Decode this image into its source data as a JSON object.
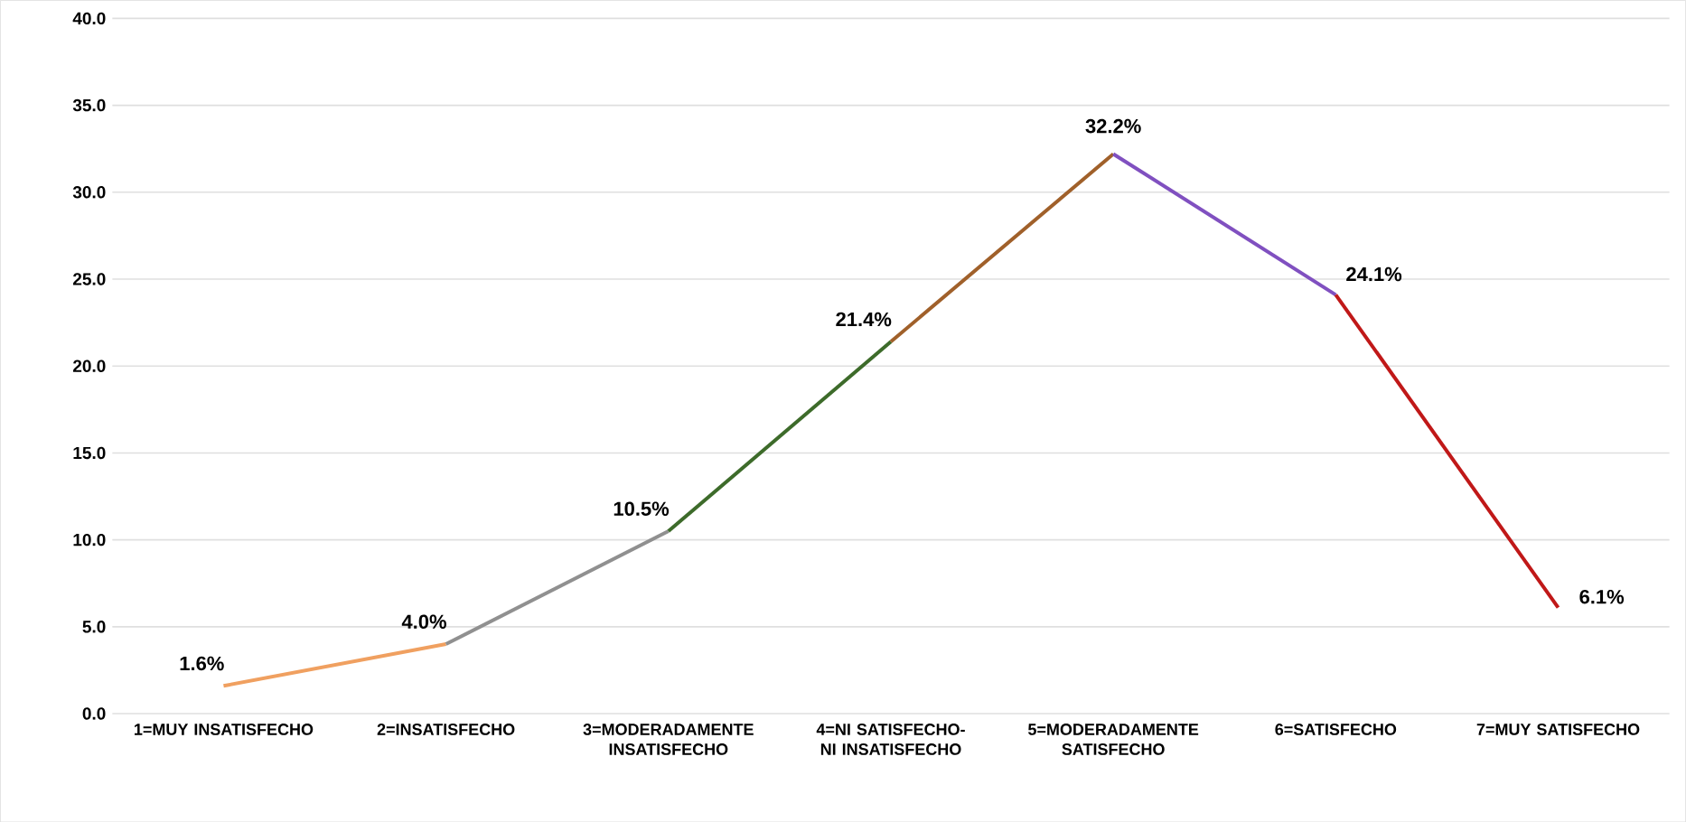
{
  "chart_data": {
    "type": "line",
    "categories": [
      "1=MUY INSATISFECHO",
      "2=INSATISFECHO",
      "3=MODERADAMENTE INSATISFECHO",
      "4=NI SATISFECHO-NI INSATISFECHO",
      "5=MODERADAMENTE SATISFECHO",
      "6=SATISFECHO",
      "7=MUY SATISFECHO"
    ],
    "series": [
      {
        "color": "#f0a060",
        "values": [
          1.6,
          4.0,
          null,
          null,
          null,
          null,
          null
        ]
      },
      {
        "color": "#909090",
        "values": [
          null,
          4.0,
          10.5,
          null,
          null,
          null,
          null
        ]
      },
      {
        "color": "#3d6b2a",
        "values": [
          null,
          null,
          10.5,
          21.4,
          null,
          null,
          null
        ]
      },
      {
        "color": "#a0602a",
        "values": [
          null,
          null,
          null,
          21.4,
          32.2,
          null,
          null
        ]
      },
      {
        "color": "#8050c0",
        "values": [
          null,
          null,
          null,
          null,
          32.2,
          24.1,
          null
        ]
      },
      {
        "color": "#c01818",
        "values": [
          null,
          null,
          null,
          null,
          null,
          24.1,
          6.1
        ]
      }
    ],
    "value_labels": [
      "1.6%",
      "4.0%",
      "10.5%",
      "21.4%",
      "32.2%",
      "24.1%",
      "6.1%"
    ],
    "ylim": [
      0,
      40
    ],
    "yticks": [
      {
        "value": 0,
        "label": "0.0"
      },
      {
        "value": 5,
        "label": "5.0"
      },
      {
        "value": 10,
        "label": "10.0"
      },
      {
        "value": 15,
        "label": "15.0"
      },
      {
        "value": 20,
        "label": "20.0"
      },
      {
        "value": 25,
        "label": "25.0"
      },
      {
        "value": 30,
        "label": "30.0"
      },
      {
        "value": 35,
        "label": "35.0"
      },
      {
        "value": 40,
        "label": "40.0"
      }
    ],
    "grid": "y",
    "marker": "none",
    "line_style": "solid"
  }
}
